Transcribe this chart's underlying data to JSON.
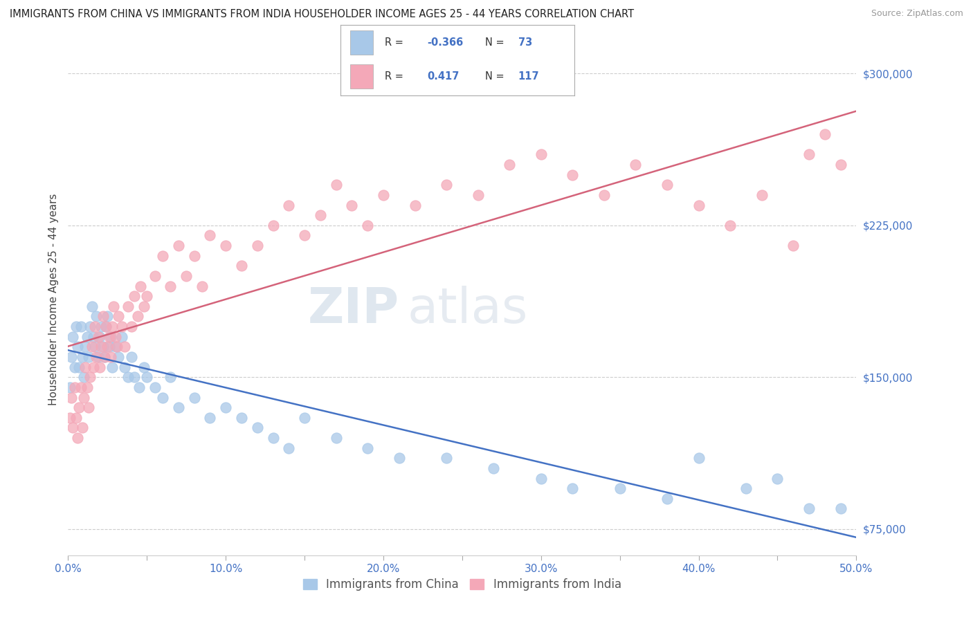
{
  "title": "IMMIGRANTS FROM CHINA VS IMMIGRANTS FROM INDIA HOUSEHOLDER INCOME AGES 25 - 44 YEARS CORRELATION CHART",
  "source": "Source: ZipAtlas.com",
  "ylabel": "Householder Income Ages 25 - 44 years",
  "xlim": [
    0.0,
    0.5
  ],
  "ylim": [
    62000,
    315000
  ],
  "yticks": [
    75000,
    150000,
    225000,
    300000
  ],
  "xticks": [
    0.0,
    0.05,
    0.1,
    0.15,
    0.2,
    0.25,
    0.3,
    0.35,
    0.4,
    0.45,
    0.5
  ],
  "xtick_labels": [
    "0.0%",
    "",
    "10.0%",
    "",
    "20.0%",
    "",
    "30.0%",
    "",
    "40.0%",
    "",
    "50.0%"
  ],
  "ytick_labels": [
    "$75,000",
    "$150,000",
    "$225,000",
    "$300,000"
  ],
  "china_color": "#a8c8e8",
  "india_color": "#f4a8b8",
  "china_line_color": "#4472c4",
  "india_line_color": "#d4637a",
  "china_R": -0.366,
  "china_N": 73,
  "india_R": 0.417,
  "india_N": 117,
  "background_color": "#ffffff",
  "grid_color": "#cccccc",
  "watermark_zip": "ZIP",
  "watermark_atlas": "atlas",
  "legend_china": "Immigrants from China",
  "legend_india": "Immigrants from India",
  "axis_color": "#4472c4",
  "china_scatter_x": [
    0.001,
    0.002,
    0.003,
    0.004,
    0.005,
    0.006,
    0.007,
    0.008,
    0.009,
    0.01,
    0.011,
    0.012,
    0.013,
    0.014,
    0.015,
    0.016,
    0.017,
    0.018,
    0.019,
    0.02,
    0.021,
    0.022,
    0.023,
    0.024,
    0.025,
    0.026,
    0.027,
    0.028,
    0.03,
    0.032,
    0.034,
    0.036,
    0.038,
    0.04,
    0.042,
    0.045,
    0.048,
    0.05,
    0.055,
    0.06,
    0.065,
    0.07,
    0.08,
    0.09,
    0.1,
    0.11,
    0.12,
    0.13,
    0.14,
    0.15,
    0.17,
    0.19,
    0.21,
    0.24,
    0.27,
    0.3,
    0.32,
    0.35,
    0.38,
    0.4,
    0.43,
    0.45,
    0.47,
    0.49
  ],
  "china_scatter_y": [
    145000,
    160000,
    170000,
    155000,
    175000,
    165000,
    155000,
    175000,
    160000,
    150000,
    165000,
    170000,
    160000,
    175000,
    185000,
    170000,
    165000,
    180000,
    160000,
    170000,
    175000,
    165000,
    160000,
    175000,
    180000,
    165000,
    170000,
    155000,
    165000,
    160000,
    170000,
    155000,
    150000,
    160000,
    150000,
    145000,
    155000,
    150000,
    145000,
    140000,
    150000,
    135000,
    140000,
    130000,
    135000,
    130000,
    125000,
    120000,
    115000,
    130000,
    120000,
    115000,
    110000,
    110000,
    105000,
    100000,
    95000,
    95000,
    90000,
    110000,
    95000,
    100000,
    85000,
    85000
  ],
  "india_scatter_x": [
    0.001,
    0.002,
    0.003,
    0.004,
    0.005,
    0.006,
    0.007,
    0.008,
    0.009,
    0.01,
    0.011,
    0.012,
    0.013,
    0.014,
    0.015,
    0.016,
    0.017,
    0.018,
    0.019,
    0.02,
    0.021,
    0.022,
    0.023,
    0.024,
    0.025,
    0.026,
    0.027,
    0.028,
    0.029,
    0.03,
    0.031,
    0.032,
    0.034,
    0.036,
    0.038,
    0.04,
    0.042,
    0.044,
    0.046,
    0.048,
    0.05,
    0.055,
    0.06,
    0.065,
    0.07,
    0.075,
    0.08,
    0.085,
    0.09,
    0.1,
    0.11,
    0.12,
    0.13,
    0.14,
    0.15,
    0.16,
    0.17,
    0.18,
    0.19,
    0.2,
    0.22,
    0.24,
    0.26,
    0.28,
    0.3,
    0.32,
    0.34,
    0.36,
    0.38,
    0.4,
    0.42,
    0.44,
    0.46,
    0.47,
    0.48,
    0.49
  ],
  "india_scatter_y": [
    130000,
    140000,
    125000,
    145000,
    130000,
    120000,
    135000,
    145000,
    125000,
    140000,
    155000,
    145000,
    135000,
    150000,
    165000,
    155000,
    175000,
    160000,
    170000,
    155000,
    165000,
    180000,
    160000,
    175000,
    165000,
    170000,
    160000,
    175000,
    185000,
    170000,
    165000,
    180000,
    175000,
    165000,
    185000,
    175000,
    190000,
    180000,
    195000,
    185000,
    190000,
    200000,
    210000,
    195000,
    215000,
    200000,
    210000,
    195000,
    220000,
    215000,
    205000,
    215000,
    225000,
    235000,
    220000,
    230000,
    245000,
    235000,
    225000,
    240000,
    235000,
    245000,
    240000,
    255000,
    260000,
    250000,
    240000,
    255000,
    245000,
    235000,
    225000,
    240000,
    215000,
    260000,
    270000,
    255000
  ]
}
